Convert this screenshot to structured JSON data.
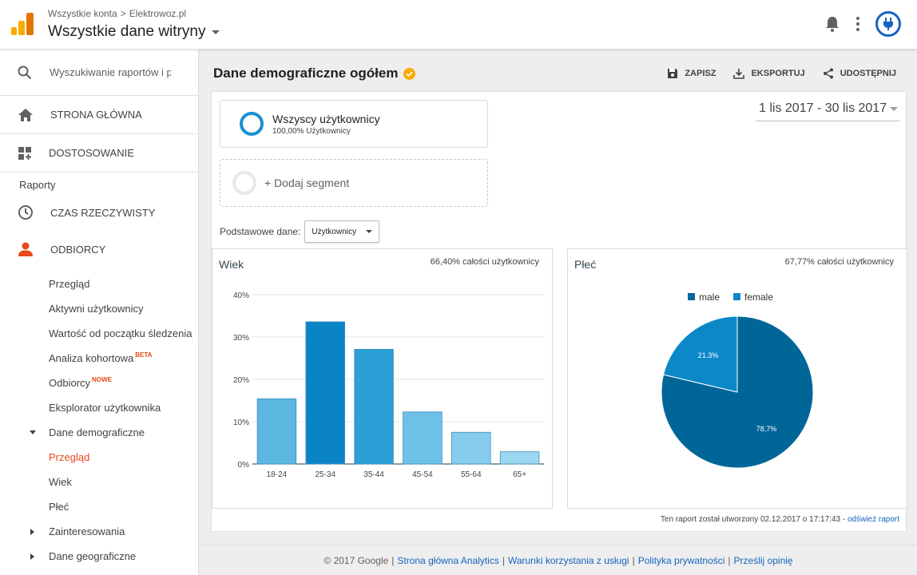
{
  "header": {
    "breadcrumb": [
      "Wszystkie konta",
      "Elektrowoz.pl"
    ],
    "breadcrumb_separator": ">",
    "property_title": "Wszystkie dane witryny"
  },
  "sidebar": {
    "search_placeholder": "Wyszukiwanie raportów i pomocy",
    "home": "STRONA GŁÓWNA",
    "customization": "DOSTOSOWANIE",
    "reports_label": "Raporty",
    "realtime": "CZAS RZECZYWISTY",
    "audience": "ODBIORCY",
    "audience_items": [
      {
        "label": "Przegląd"
      },
      {
        "label": "Aktywni użytkownicy"
      },
      {
        "label": "Wartość od początku śledzenia"
      },
      {
        "label": "Analiza kohortowa",
        "badge": "BETA"
      },
      {
        "label": "Odbiorcy",
        "badge": "NOWE"
      },
      {
        "label": "Eksplorator użytkownika"
      },
      {
        "label": "Dane demograficzne",
        "expanded": true
      },
      {
        "label": "Przegląd",
        "active": true
      },
      {
        "label": "Wiek"
      },
      {
        "label": "Płeć"
      },
      {
        "label": "Zainteresowania",
        "collapsed": true
      },
      {
        "label": "Dane geograficzne",
        "collapsed": true
      }
    ]
  },
  "report": {
    "title": "Dane demograficzne ogółem",
    "actions": {
      "save": "ZAPISZ",
      "export": "EKSPORTUJ",
      "share": "UDOSTĘPNIJ"
    },
    "segment": {
      "name": "Wszyscy użytkownicy",
      "sub": "100,00% Użytkownicy"
    },
    "add_segment": "+ Dodaj segment",
    "date_range": "1 lis 2017 - 30 lis 2017",
    "primary_dimension_label": "Podstawowe dane:",
    "primary_dimension_value": "Użytkownicy",
    "age_panel": {
      "title": "Wiek",
      "meta": "66,40% całości użytkownicy"
    },
    "gender_panel": {
      "title": "Płeć",
      "meta": "67,77% całości użytkownicy"
    },
    "footnote": "Ten raport został utworzony 02.12.2017 o 17:17:43 - ",
    "refresh_link": "odśwież raport"
  },
  "footer": {
    "copyright": "© 2017 Google",
    "links": [
      "Strona główna Analytics",
      "Warunki korzystania z usługi",
      "Polityka prywatności",
      "Prześlij opinię"
    ]
  },
  "colors": {
    "orange_active": "#e64a19",
    "link_blue": "#1565c0",
    "ga_yellow": "#f9ab00",
    "ga_orange": "#e37400"
  },
  "chart_data": [
    {
      "type": "bar",
      "title": "Wiek",
      "categories": [
        "18-24",
        "25-34",
        "35-44",
        "45-54",
        "55-64",
        "65+"
      ],
      "values": [
        15.4,
        33.6,
        27.1,
        12.3,
        7.5,
        2.9
      ],
      "ylim": [
        0,
        40
      ],
      "yticks": [
        "0%",
        "10%",
        "20%",
        "30%",
        "40%"
      ],
      "colors": [
        "#5bb7e0",
        "#0b84c6",
        "#2b9fd6",
        "#6ec1e6",
        "#86cdec",
        "#9dd7f0"
      ],
      "grid": true
    },
    {
      "type": "pie",
      "title": "Płeć",
      "legend": [
        "male",
        "female"
      ],
      "values": [
        78.7,
        21.3
      ],
      "labels": [
        "78,7%",
        "21.3%"
      ],
      "colors": [
        "#006698",
        "#0c88c8"
      ],
      "legend_position": "top"
    }
  ]
}
